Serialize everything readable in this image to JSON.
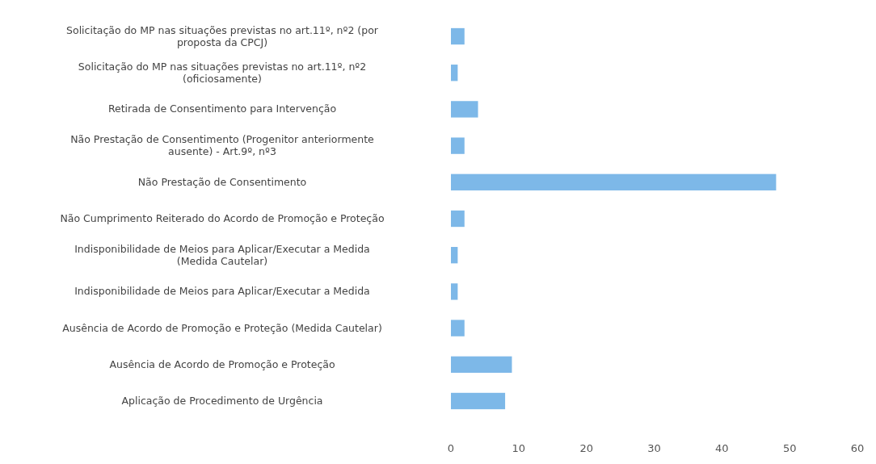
{
  "chart_data": {
    "type": "bar",
    "orientation": "horizontal",
    "categories": [
      "Solicitação do MP nas situações previstas no art.11º, nº2 (por proposta da CPCJ)",
      "Solicitação do MP nas situações previstas no art.11º, nº2 (oficiosamente)",
      "Retirada de Consentimento para Intervenção",
      "Não Prestação de Consentimento (Progenitor anteriormente ausente) - Art.9º, nº3",
      "Não Prestação de Consentimento",
      "Não Cumprimento Reiterado do Acordo de Promoção e Proteção",
      "Indisponibilidade de Meios para Aplicar/Executar a Medida (Medida Cautelar)",
      "Indisponibilidade de Meios para Aplicar/Executar a Medida",
      "Ausência de Acordo de Promoção e Proteção (Medida Cautelar)",
      "Ausência de Acordo de Promoção e Proteção",
      "Aplicação de Procedimento de Urgência"
    ],
    "values": [
      2,
      1,
      4,
      2,
      48,
      2,
      1,
      1,
      2,
      9,
      8
    ],
    "color": "#7db8e8",
    "xlim": [
      0,
      60
    ],
    "xticks": [
      0,
      10,
      20,
      30,
      40,
      50,
      60
    ]
  }
}
